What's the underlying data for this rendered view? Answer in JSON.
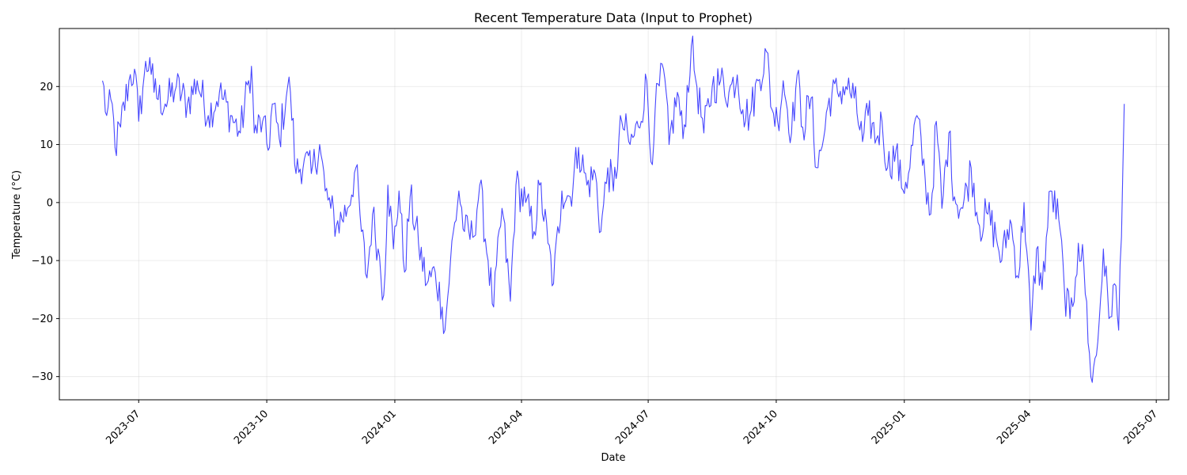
{
  "chart_data": {
    "type": "line",
    "title": "Recent Temperature Data (Input to Prophet)",
    "xlabel": "Date",
    "ylabel": "Temperature (°C)",
    "x_start": "2023-06-05",
    "x_end": "2025-06-08",
    "xlim": [
      "2023-05-05",
      "2025-07-10"
    ],
    "ylim": [
      -34,
      30
    ],
    "x_ticks": [
      "2023-07",
      "2023-10",
      "2024-01",
      "2024-04",
      "2024-07",
      "2024-10",
      "2025-01",
      "2025-04",
      "2025-07"
    ],
    "y_ticks": [
      -30,
      -20,
      -10,
      0,
      10,
      20
    ],
    "y_tick_labels": [
      "−30",
      "−20",
      "−10",
      "0",
      "10",
      "20"
    ],
    "grid": true,
    "line_color": "#0000ff",
    "series": [
      {
        "points": [
          [
            "2023-06-05",
            21
          ],
          [
            "2023-06-08",
            15
          ],
          [
            "2023-06-12",
            17
          ],
          [
            "2023-06-14",
            9.5
          ],
          [
            "2023-06-18",
            13
          ],
          [
            "2023-06-24",
            21
          ],
          [
            "2023-06-28",
            23
          ],
          [
            "2023-07-01",
            14
          ],
          [
            "2023-07-05",
            22
          ],
          [
            "2023-07-09",
            25
          ],
          [
            "2023-07-12",
            19
          ],
          [
            "2023-07-20",
            17
          ],
          [
            "2023-07-28",
            20
          ],
          [
            "2023-08-05",
            17
          ],
          [
            "2023-08-12",
            21
          ],
          [
            "2023-08-20",
            15
          ],
          [
            "2023-08-28",
            19
          ],
          [
            "2023-09-05",
            15
          ],
          [
            "2023-09-12",
            12
          ],
          [
            "2023-09-18",
            21
          ],
          [
            "2023-09-20",
            23.5
          ],
          [
            "2023-09-22",
            12
          ],
          [
            "2023-09-28",
            14
          ],
          [
            "2023-10-02",
            9
          ],
          [
            "2023-10-05",
            17
          ],
          [
            "2023-10-10",
            11
          ],
          [
            "2023-10-16",
            20
          ],
          [
            "2023-10-18",
            19
          ],
          [
            "2023-10-22",
            5
          ],
          [
            "2023-10-28",
            7.5
          ],
          [
            "2023-11-02",
            5
          ],
          [
            "2023-11-08",
            10
          ],
          [
            "2023-11-12",
            2
          ],
          [
            "2023-11-16",
            -1
          ],
          [
            "2023-11-20",
            -4
          ],
          [
            "2023-11-28",
            -1
          ],
          [
            "2023-12-04",
            6
          ],
          [
            "2023-12-08",
            -5
          ],
          [
            "2023-12-12",
            -13
          ],
          [
            "2023-12-16",
            -2
          ],
          [
            "2023-12-20",
            -8
          ],
          [
            "2023-12-24",
            -16
          ],
          [
            "2023-12-27",
            3
          ],
          [
            "2023-12-31",
            -8
          ],
          [
            "2024-01-04",
            2
          ],
          [
            "2024-01-08",
            -12
          ],
          [
            "2024-01-12",
            1
          ],
          [
            "2024-01-18",
            -7
          ],
          [
            "2024-01-24",
            -14
          ],
          [
            "2024-01-30",
            -12
          ],
          [
            "2024-02-04",
            -18
          ],
          [
            "2024-02-06",
            -22
          ],
          [
            "2024-02-10",
            -10
          ],
          [
            "2024-02-16",
            2
          ],
          [
            "2024-02-20",
            -5
          ],
          [
            "2024-02-26",
            -6
          ],
          [
            "2024-03-02",
            3
          ],
          [
            "2024-03-08",
            -10
          ],
          [
            "2024-03-12",
            -18
          ],
          [
            "2024-03-18",
            -1
          ],
          [
            "2024-03-24",
            -17
          ],
          [
            "2024-03-28",
            3
          ],
          [
            "2024-04-04",
            0
          ],
          [
            "2024-04-10",
            -5
          ],
          [
            "2024-04-14",
            3
          ],
          [
            "2024-04-20",
            -7
          ],
          [
            "2024-04-24",
            -14
          ],
          [
            "2024-04-30",
            2
          ],
          [
            "2024-05-06",
            1
          ],
          [
            "2024-05-12",
            9.5
          ],
          [
            "2024-05-18",
            3
          ],
          [
            "2024-05-24",
            5
          ],
          [
            "2024-05-28",
            -5
          ],
          [
            "2024-06-02",
            6
          ],
          [
            "2024-06-06",
            2
          ],
          [
            "2024-06-12",
            14
          ],
          [
            "2024-06-18",
            10
          ],
          [
            "2024-06-24",
            13
          ],
          [
            "2024-06-30",
            21
          ],
          [
            "2024-07-03",
            7
          ],
          [
            "2024-07-06",
            16
          ],
          [
            "2024-07-12",
            23
          ],
          [
            "2024-07-16",
            10
          ],
          [
            "2024-07-22",
            19
          ],
          [
            "2024-07-26",
            11
          ],
          [
            "2024-08-01",
            27
          ],
          [
            "2024-08-05",
            20
          ],
          [
            "2024-08-10",
            12
          ],
          [
            "2024-08-16",
            20
          ],
          [
            "2024-08-22",
            21
          ],
          [
            "2024-08-28",
            19
          ],
          [
            "2024-09-03",
            22
          ],
          [
            "2024-09-07",
            16
          ],
          [
            "2024-09-12",
            15
          ],
          [
            "2024-09-18",
            21
          ],
          [
            "2024-09-24",
            26
          ],
          [
            "2024-09-28",
            16
          ],
          [
            "2024-10-02",
            14
          ],
          [
            "2024-10-06",
            21
          ],
          [
            "2024-10-12",
            12
          ],
          [
            "2024-10-16",
            22
          ],
          [
            "2024-10-20",
            13
          ],
          [
            "2024-10-26",
            18
          ],
          [
            "2024-10-30",
            6
          ],
          [
            "2024-11-04",
            11
          ],
          [
            "2024-11-08",
            18
          ],
          [
            "2024-11-14",
            19
          ],
          [
            "2024-11-20",
            20
          ],
          [
            "2024-11-26",
            18
          ],
          [
            "2024-12-02",
            10.5
          ],
          [
            "2024-12-06",
            15
          ],
          [
            "2024-12-12",
            11
          ],
          [
            "2024-12-16",
            14
          ],
          [
            "2024-12-20",
            6
          ],
          [
            "2024-12-26",
            9
          ],
          [
            "2024-12-30",
            2.5
          ],
          [
            "2025-01-04",
            5
          ],
          [
            "2025-01-10",
            15
          ],
          [
            "2025-01-16",
            4
          ],
          [
            "2025-01-20",
            -2
          ],
          [
            "2025-01-24",
            14
          ],
          [
            "2025-01-28",
            -1
          ],
          [
            "2025-02-02",
            12
          ],
          [
            "2025-02-06",
            1
          ],
          [
            "2025-02-12",
            -1
          ],
          [
            "2025-02-18",
            6
          ],
          [
            "2025-02-24",
            -4
          ],
          [
            "2025-03-02",
            -2
          ],
          [
            "2025-03-08",
            -6
          ],
          [
            "2025-03-12",
            -10
          ],
          [
            "2025-03-18",
            -3
          ],
          [
            "2025-03-24",
            -13
          ],
          [
            "2025-03-28",
            0
          ],
          [
            "2025-04-02",
            -22
          ],
          [
            "2025-04-06",
            -8
          ],
          [
            "2025-04-10",
            -15
          ],
          [
            "2025-04-16",
            2
          ],
          [
            "2025-04-22",
            -3
          ],
          [
            "2025-04-26",
            -15
          ],
          [
            "2025-04-30",
            -20
          ],
          [
            "2025-05-04",
            -13
          ],
          [
            "2025-05-06",
            -7
          ],
          [
            "2025-05-10",
            -11
          ],
          [
            "2025-05-14",
            -26
          ],
          [
            "2025-05-16",
            -31
          ],
          [
            "2025-05-20",
            -24
          ],
          [
            "2025-05-24",
            -8
          ],
          [
            "2025-05-28",
            -20
          ],
          [
            "2025-06-01",
            -14
          ],
          [
            "2025-06-04",
            -22
          ],
          [
            "2025-06-08",
            17
          ]
        ]
      }
    ]
  }
}
